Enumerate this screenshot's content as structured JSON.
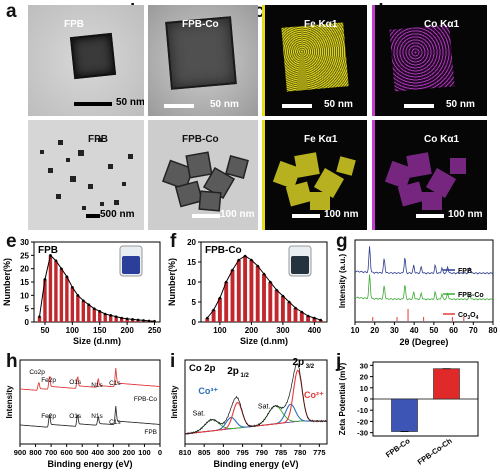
{
  "panel_labels": [
    "a",
    "b",
    "c",
    "d",
    "e",
    "f",
    "g",
    "h",
    "i",
    "j"
  ],
  "micro": {
    "a_top": {
      "label": "FPB",
      "scale": "50 nm"
    },
    "a_bot": {
      "label": "FPB",
      "scale": "500 nm"
    },
    "b_top": {
      "label": "FPB-Co",
      "scale": "50 nm"
    },
    "b_bot": {
      "label": "FPB-Co",
      "scale": "100 nm"
    },
    "c_top": {
      "label": "Fe Kα1",
      "scale": "50 nm"
    },
    "c_bot": {
      "label": "Fe Kα1",
      "scale": "100 nm"
    },
    "d_top": {
      "label": "Co Kα1",
      "scale": "50 nm"
    },
    "d_bot": {
      "label": "Co Kα1",
      "scale": "100 nm"
    },
    "colors": {
      "fe": "#d8d21a",
      "co": "#c23fd0"
    }
  },
  "chart_data": [
    {
      "id": "e",
      "type": "bar",
      "title": "FPB",
      "xlabel": "Size (d.nm)",
      "ylabel": "Number(%)",
      "x": [
        40,
        50,
        60,
        70,
        80,
        90,
        100,
        110,
        120,
        130,
        140,
        150,
        160,
        170,
        180,
        190,
        200,
        210,
        220,
        230,
        240,
        250
      ],
      "values": [
        2,
        16,
        25,
        23,
        20,
        17,
        13,
        10,
        8,
        6.5,
        5,
        4,
        3,
        2.5,
        2,
        1.5,
        1.2,
        1,
        0.8,
        0.6,
        0.4,
        0.3
      ],
      "xticks": [
        50,
        100,
        150,
        200,
        250
      ],
      "yticks": [
        0,
        5,
        10,
        15,
        20,
        25,
        30
      ],
      "xlim": [
        30,
        260
      ],
      "ylim": [
        0,
        30
      ],
      "color": "#c0282d"
    },
    {
      "id": "f",
      "type": "bar",
      "title": "FPB-Co",
      "xlabel": "Size (d.nm)",
      "ylabel": "Number(%)",
      "x": [
        60,
        80,
        100,
        120,
        140,
        160,
        180,
        200,
        220,
        240,
        260,
        280,
        300,
        320,
        340,
        360,
        380,
        400,
        420
      ],
      "values": [
        1,
        3,
        6,
        10,
        13,
        15.5,
        16.5,
        15.5,
        14,
        12,
        10,
        8,
        6.5,
        5,
        3.5,
        2.5,
        1.5,
        1,
        0.5
      ],
      "xticks": [
        100,
        200,
        300,
        400
      ],
      "yticks": [
        0,
        5,
        10,
        15,
        20
      ],
      "xlim": [
        40,
        440
      ],
      "ylim": [
        0,
        20
      ],
      "color": "#c0282d"
    },
    {
      "id": "g",
      "type": "line",
      "xlabel": "2θ (Degree)",
      "ylabel": "Intensity (a.u.)",
      "xticks": [
        10,
        20,
        30,
        40,
        50,
        60,
        70,
        80
      ],
      "xlim": [
        10,
        80
      ],
      "series": [
        {
          "name": "FPB",
          "color": "#2e3d8f"
        },
        {
          "name": "FPB-Co",
          "color": "#3aa935"
        },
        {
          "name": "Co3O4",
          "color": "#e23b3b"
        }
      ],
      "ref_peaks": [
        19,
        31.3,
        36.9,
        44.8,
        59.4,
        65.2
      ]
    },
    {
      "id": "h",
      "type": "line",
      "xlabel": "Binding energy (eV)",
      "ylabel": "Intensity",
      "xticks": [
        900,
        800,
        700,
        600,
        500,
        400,
        300,
        200,
        100,
        0
      ],
      "xlim": [
        900,
        0
      ],
      "series": [
        {
          "name": "FPB-Co",
          "color": "#e23b3b"
        },
        {
          "name": "FPB",
          "color": "#333333"
        }
      ],
      "peaks_top": [
        "Co2p",
        "Fe2p",
        "O1s",
        "N1s",
        "C1s"
      ],
      "peaks_bot": [
        "Fe2p",
        "O1s",
        "N1s",
        "C1s"
      ]
    },
    {
      "id": "i",
      "type": "line",
      "title": "Co 2p",
      "xlabel": "Binding energy (eV)",
      "ylabel": "Intensity",
      "xticks": [
        810,
        805,
        800,
        795,
        790,
        785,
        780,
        775
      ],
      "xlim": [
        810,
        773
      ],
      "annotations": {
        "p12": "2p",
        "p12sub": "1/2",
        "p32": "2p",
        "p32sub": "3/2",
        "sat": "Sat.",
        "co3": "Co³⁺",
        "co2": "Co²⁺"
      }
    },
    {
      "id": "j",
      "type": "bar",
      "xlabel": "",
      "ylabel": "Zeta Potential (mV)",
      "categories": [
        "FPB-Co",
        "FPB-Co-Ch"
      ],
      "values": [
        -29,
        27
      ],
      "colors": [
        "#3d55b5",
        "#e02a2a"
      ],
      "yticks": [
        -30,
        -20,
        -10,
        0,
        10,
        20,
        30
      ],
      "ylim": [
        -33,
        33
      ]
    }
  ]
}
